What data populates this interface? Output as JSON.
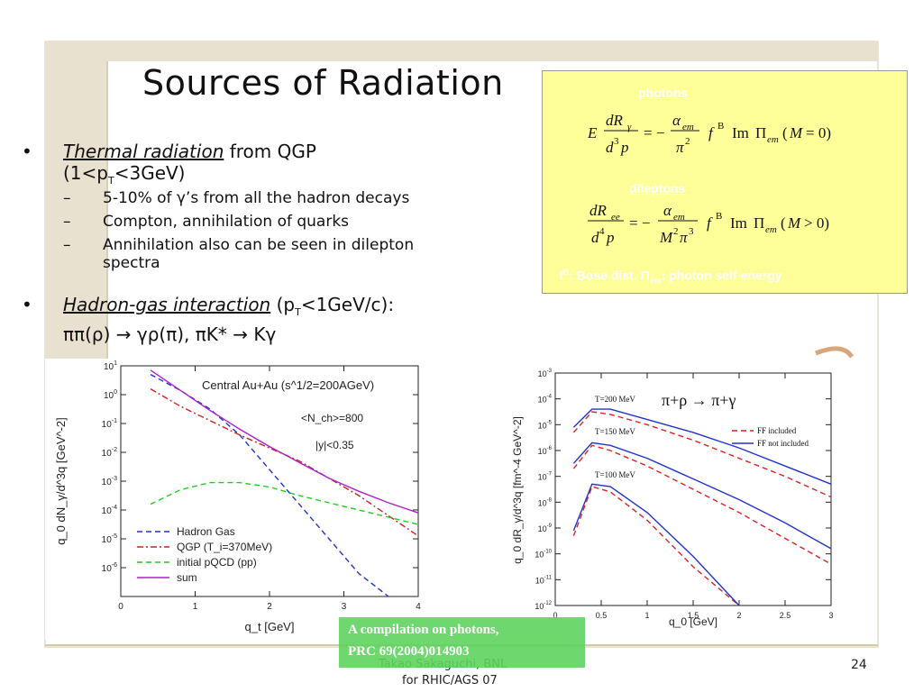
{
  "slide": {
    "title": "Sources of Radiation",
    "page_number": "24",
    "footer_line1": "Takao Sakaguchi, BNL",
    "footer_line2": "for RHIC/AGS 07"
  },
  "bullets": {
    "b1_italic": "Thermal radiation",
    "b1_rest": " from QGP",
    "b1_line2a": "(1<p",
    "b1_line2sub": "T",
    "b1_line2b": "<3GeV)",
    "sub1": "5-10% of γ’s from all the hadron decays",
    "sub2": "Compton, annihilation of quarks",
    "sub3a": "Annihilation also can be seen in dilepton",
    "sub3b": "spectra",
    "b2_italic": "Hadron-gas interaction",
    "b2_rest_a": " (p",
    "b2_rest_sub": "T",
    "b2_rest_b": "<1GeV/c):",
    "b2_line2": "ππ(ρ) → γρ(π),  πK* → Kγ",
    "bullet_symbol": "•",
    "dash_symbol": "–"
  },
  "formula_box": {
    "photons_label": "photons",
    "dileptons_label": "dileptons",
    "footnote": "f B: Bose dist.    Πem: photon self energy",
    "footnote_f": "f",
    "footnote_sup": "B",
    "footnote_mid": ": Bose dist.    Π",
    "footnote_sub": "em",
    "footnote_end": ": photon self energy",
    "bg_color": "#ffff99"
  },
  "green_box": {
    "line1": "A compilation on photons,",
    "line2": "PRC 69(2004)014903",
    "color": "#5fd35f"
  },
  "chart_data": [
    {
      "type": "line",
      "panel_title": "Central Au+Au (s^1/2=200AGeV)",
      "annotation1": "<N_ch>=800",
      "annotation2": "|y|<0.35",
      "xlabel": "q_t [GeV]",
      "ylabel": "q_0 dN_γ/d^3q [GeV^-2]",
      "xlim": [
        0,
        4
      ],
      "ylim_log10": [
        -7,
        1
      ],
      "xticks": [
        "0",
        "1",
        "2",
        "3",
        "4"
      ],
      "yticks": [
        "10^1",
        "10^0",
        "10^-1",
        "10^-2",
        "10^-3",
        "10^-4",
        "10^-5",
        "10^-6"
      ],
      "legend_placement": "bottom-left",
      "series": [
        {
          "name": "Hadron Gas",
          "style": "dashed",
          "color": "#2233cc",
          "x": [
            0.4,
            0.8,
            1.2,
            1.6,
            2.0,
            2.4,
            2.8,
            3.2,
            3.6
          ],
          "log10y": [
            0.7,
            0.15,
            -0.5,
            -1.4,
            -2.6,
            -3.8,
            -5.0,
            -6.2,
            -7.0
          ]
        },
        {
          "name": "QGP (T_i=370MeV)",
          "style": "dashdot",
          "color": "#cc2222",
          "x": [
            0.4,
            0.8,
            1.2,
            1.6,
            2.0,
            2.4,
            2.8,
            3.2,
            3.6,
            4.0
          ],
          "log10y": [
            0.2,
            -0.4,
            -0.9,
            -1.4,
            -1.85,
            -2.3,
            -2.9,
            -3.5,
            -4.2,
            -4.9
          ]
        },
        {
          "name": "initial pQCD (pp)",
          "style": "dashed",
          "color": "#22cc22",
          "x": [
            0.4,
            0.8,
            1.2,
            1.6,
            2.0,
            2.4,
            2.8,
            3.2,
            3.6,
            4.0
          ],
          "log10y": [
            -3.8,
            -3.3,
            -3.05,
            -3.05,
            -3.2,
            -3.5,
            -3.75,
            -4.0,
            -4.25,
            -4.5
          ]
        },
        {
          "name": "sum",
          "style": "solid",
          "color": "#aa22cc",
          "x": [
            0.4,
            0.8,
            1.2,
            1.6,
            2.0,
            2.4,
            2.8,
            3.2,
            3.6,
            4.0
          ],
          "log10y": [
            0.85,
            0.15,
            -0.55,
            -1.2,
            -1.8,
            -2.35,
            -2.9,
            -3.35,
            -3.75,
            -4.1
          ]
        }
      ]
    },
    {
      "type": "line",
      "panel_title": "π+ρ → π+γ",
      "xlabel": "q_0 [GeV]",
      "ylabel": "q_0 dR_γ/d^3q [fm^-4 GeV^-2]",
      "xlim": [
        0,
        3
      ],
      "ylim_log10": [
        -12,
        -3
      ],
      "xticks": [
        "0",
        "0.5",
        "1",
        "1.5",
        "2",
        "2.5",
        "3"
      ],
      "yticks": [
        "10^-3",
        "10^-4",
        "10^-5",
        "10^-6",
        "10^-7",
        "10^-8",
        "10^-9",
        "10^-10",
        "10^-11",
        "10^-12"
      ],
      "annotations": [
        "T=200 MeV",
        "T=150 MeV",
        "T=100 MeV"
      ],
      "legend_placement": "top-right",
      "series": [
        {
          "name": "FF included",
          "style": "dashed",
          "color": "#dd2222",
          "group": "T=200 MeV",
          "x": [
            0.2,
            0.4,
            0.6,
            1.0,
            1.5,
            2.0,
            2.5,
            3.0
          ],
          "log10y": [
            -5.3,
            -4.5,
            -4.6,
            -5.0,
            -5.6,
            -6.3,
            -7.0,
            -7.8
          ]
        },
        {
          "name": "FF not included",
          "style": "solid",
          "color": "#2233cc",
          "group": "T=200 MeV",
          "x": [
            0.2,
            0.4,
            0.6,
            1.0,
            1.5,
            2.0,
            2.5,
            3.0
          ],
          "log10y": [
            -5.1,
            -4.4,
            -4.4,
            -4.8,
            -5.3,
            -5.9,
            -6.6,
            -7.3
          ]
        },
        {
          "name": "FF included",
          "style": "dashed",
          "color": "#dd2222",
          "group": "T=150 MeV",
          "x": [
            0.2,
            0.4,
            0.6,
            1.0,
            1.5,
            2.0,
            2.5,
            3.0
          ],
          "log10y": [
            -6.7,
            -5.8,
            -6.0,
            -6.6,
            -7.5,
            -8.4,
            -9.4,
            -10.4
          ]
        },
        {
          "name": "FF not included",
          "style": "solid",
          "color": "#2233cc",
          "group": "T=150 MeV",
          "x": [
            0.2,
            0.4,
            0.6,
            1.0,
            1.5,
            2.0,
            2.5,
            3.0
          ],
          "log10y": [
            -6.5,
            -5.7,
            -5.8,
            -6.3,
            -7.1,
            -7.9,
            -8.8,
            -9.8
          ]
        },
        {
          "name": "FF included",
          "style": "dashed",
          "color": "#dd2222",
          "group": "T=100 MeV",
          "x": [
            0.2,
            0.4,
            0.6,
            1.0,
            1.5,
            2.0
          ],
          "log10y": [
            -9.3,
            -7.4,
            -7.6,
            -8.7,
            -10.5,
            -12.2
          ]
        },
        {
          "name": "FF not included",
          "style": "solid",
          "color": "#2233cc",
          "group": "T=100 MeV",
          "x": [
            0.2,
            0.4,
            0.6,
            1.0,
            1.5,
            2.0
          ],
          "log10y": [
            -9.1,
            -7.3,
            -7.4,
            -8.4,
            -10.1,
            -12.0
          ]
        }
      ]
    }
  ]
}
